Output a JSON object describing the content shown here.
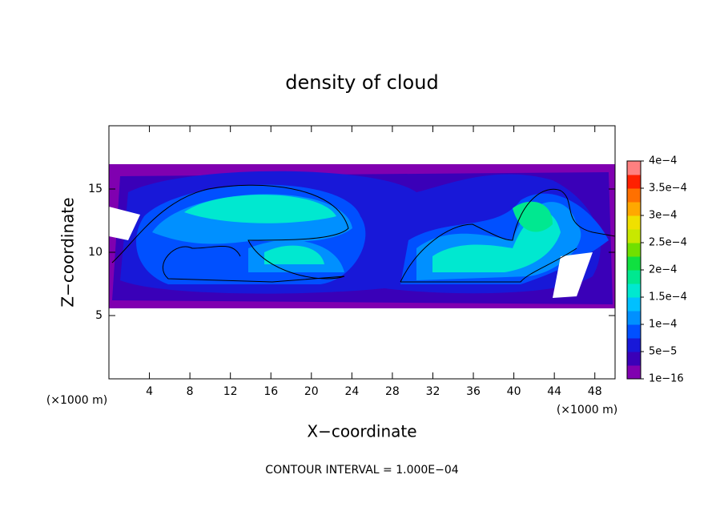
{
  "chart_data": {
    "type": "contour",
    "title": "density of cloud",
    "xlabel": "X−coordinate",
    "ylabel": "Z−coordinate",
    "x_unit": "(×1000 m)",
    "annotation": "CONTOUR INTERVAL = 1.000E−04",
    "xlim": [
      0,
      50
    ],
    "xticks": [
      4,
      8,
      12,
      16,
      20,
      24,
      28,
      32,
      36,
      40,
      44,
      48
    ],
    "ylim": [
      0,
      20
    ],
    "yticks": [
      5,
      10,
      15
    ],
    "clim": [
      1e-16,
      0.0004
    ],
    "colorbar_ticks": [
      {
        "value": 1e-16,
        "label": "1e−16"
      },
      {
        "value": 5e-05,
        "label": "5e−5"
      },
      {
        "value": 0.0001,
        "label": "1e−4"
      },
      {
        "value": 0.00015,
        "label": "1.5e−4"
      },
      {
        "value": 0.0002,
        "label": "2e−4"
      },
      {
        "value": 0.00025,
        "label": "2.5e−4"
      },
      {
        "value": 0.0003,
        "label": "3e−4"
      },
      {
        "value": 0.00035,
        "label": "3.5e−4"
      },
      {
        "value": 0.0004,
        "label": "4e−4"
      }
    ],
    "colors": [
      "#8000b0",
      "#3a00b8",
      "#1818d8",
      "#0050ff",
      "#0090ff",
      "#00c0ff",
      "#00e8d0",
      "#00e890",
      "#10e040",
      "#70e000",
      "#c8e800",
      "#f0e000",
      "#ffa800",
      "#ff7000",
      "#ff2000",
      "#ff8080"
    ]
  }
}
